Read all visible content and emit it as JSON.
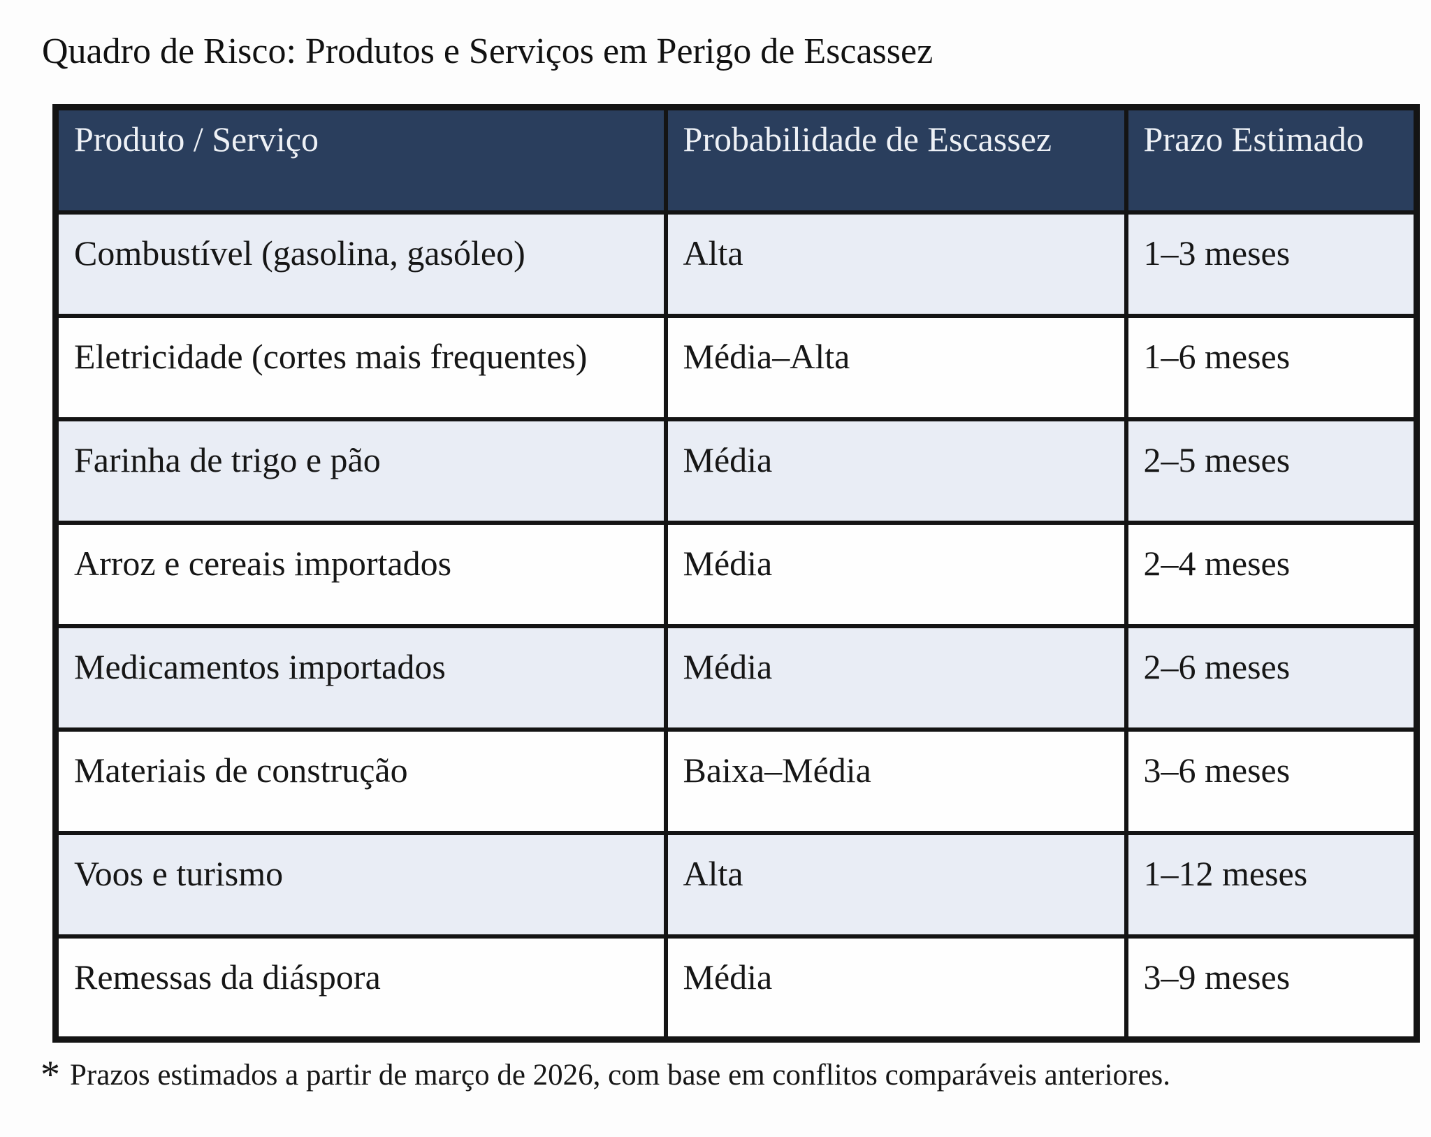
{
  "title": "Quadro de Risco: Produtos e Serviços em Perigo de Escassez",
  "table": {
    "columns": [
      "Produto / Serviço",
      "Probabilidade de Escassez",
      "Prazo Estimado"
    ],
    "rows": [
      {
        "produto": "Combustível (gasolina, gasóleo)",
        "probabilidade": "Alta",
        "prazo": "1–3 meses"
      },
      {
        "produto": "Eletricidade (cortes mais frequentes)",
        "probabilidade": "Média–Alta",
        "prazo": "1–6 meses"
      },
      {
        "produto": "Farinha de trigo e pão",
        "probabilidade": "Média",
        "prazo": "2–5 meses"
      },
      {
        "produto": "Arroz e cereais importados",
        "probabilidade": "Média",
        "prazo": "2–4 meses"
      },
      {
        "produto": "Medicamentos importados",
        "probabilidade": "Média",
        "prazo": "2–6 meses"
      },
      {
        "produto": "Materiais de construção",
        "probabilidade": "Baixa–Média",
        "prazo": "3–6 meses"
      },
      {
        "produto": "Voos e turismo",
        "probabilidade": "Alta",
        "prazo": "1–12 meses"
      },
      {
        "produto": "Remessas da diáspora",
        "probabilidade": "Média",
        "prazo": "3–9 meses"
      }
    ]
  },
  "footnote": {
    "marker": "*",
    "text": "Prazos estimados a partir de março de 2026, com base em conflitos comparáveis anteriores."
  },
  "colors": {
    "header_bg": "#2a3e5d",
    "header_text": "#eef1f6",
    "row_alt_bg": "#e9edf5",
    "row_bg": "#fefefe",
    "border": "#141414",
    "text": "#161616"
  }
}
